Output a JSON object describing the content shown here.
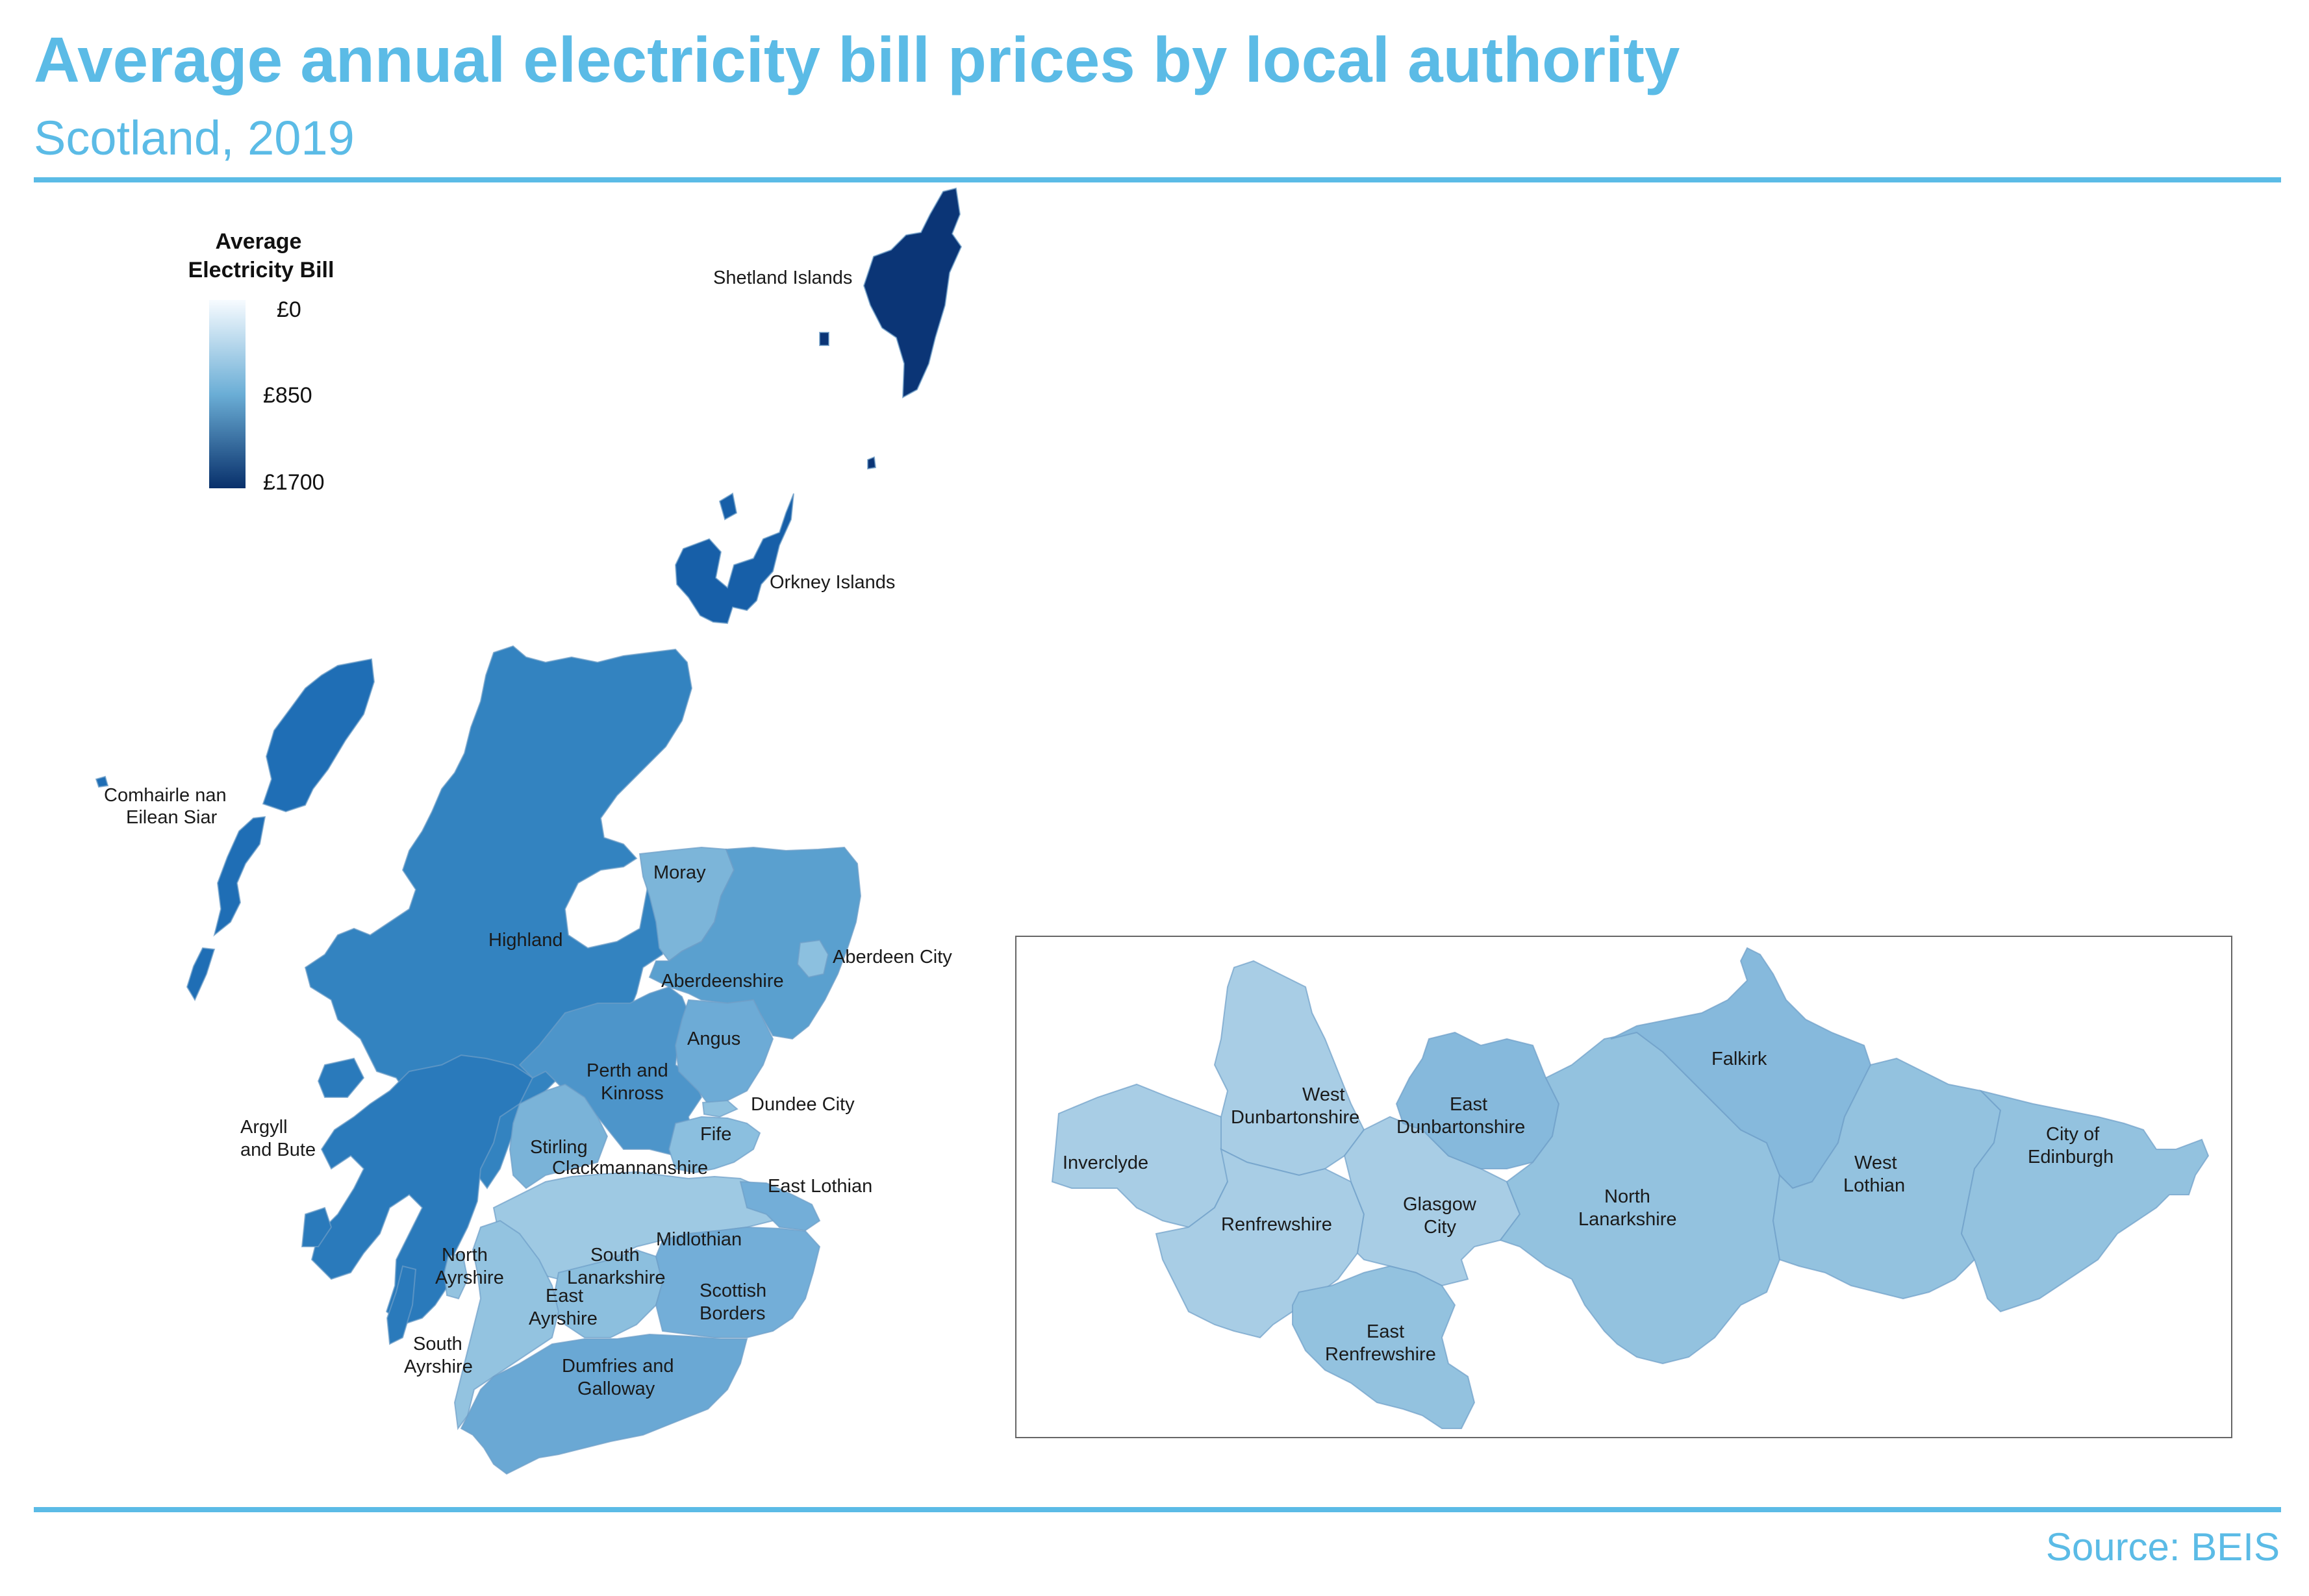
{
  "title": "Average annual electricity bill prices by local authority",
  "subtitle": "Scotland, 2019",
  "source": "Source: BEIS",
  "legend": {
    "title_line1": "Average",
    "title_line2": "Electricity Bill",
    "ticks": [
      "£0",
      "£850",
      "£1700"
    ],
    "min": 0,
    "max": 1700,
    "color_low": "#f7fbff",
    "color_mid": "#6baed6",
    "color_high": "#08306b"
  },
  "colors": {
    "shetland": "#0b3576",
    "orkney": "#175fa8",
    "eilean_siar": "#1f6eb5",
    "highland": "#3383c0",
    "argyll": "#2a7abb",
    "moray": "#7cb5d9",
    "aberdeenshire": "#5aa0cf",
    "aberdeen_city": "#8cc0df",
    "angus": "#6dabd6",
    "perth": "#4d95ca",
    "dundee": "#8fc1df",
    "fife": "#8bbfdf",
    "stirling": "#7ab3d8",
    "central_belt": "#9ec9e3",
    "south_lanarkshire": "#8cbfde",
    "borders": "#73aed8",
    "dumfries": "#6aa8d4",
    "ayrshire": "#93c3e0",
    "inset_pale": "#a8cde5",
    "inset_mid": "#93c2df",
    "inset_dark": "#86b9dc"
  },
  "labels": {
    "shetland": "Shetland Islands",
    "orkney": "Orkney Islands",
    "eilean_siar_1": "Comhairle nan",
    "eilean_siar_2": "Eilean Siar",
    "highland": "Highland",
    "moray": "Moray",
    "aberdeen_city": "Aberdeen City",
    "aberdeenshire": "Aberdeenshire",
    "angus": "Angus",
    "perth_1": "Perth and",
    "perth_2": "Kinross",
    "dundee": "Dundee City",
    "argyll_1": "Argyll",
    "argyll_2": "and Bute",
    "fife": "Fife",
    "stirling": "Stirling",
    "clackmannanshire": "Clackmannanshire",
    "east_lothian": "East Lothian",
    "midlothian": "Midlothian",
    "south_lanarkshire_1": "South",
    "south_lanarkshire_2": "Lanarkshire",
    "north_ayrshire_1": "North",
    "north_ayrshire_2": "Ayrshire",
    "east_ayrshire_1": "East",
    "east_ayrshire_2": "Ayrshire",
    "scottish_borders_1": "Scottish",
    "scottish_borders_2": "Borders",
    "south_ayrshire_1": "South",
    "south_ayrshire_2": "Ayrshire",
    "dumfries_1": "Dumfries and",
    "dumfries_2": "Galloway"
  },
  "inset_labels": {
    "west_dunbartonshire_1": "West",
    "west_dunbartonshire_2": "Dunbartonshire",
    "east_dunbartonshire_1": "East",
    "east_dunbartonshire_2": "Dunbartonshire",
    "falkirk": "Falkirk",
    "city_of_edinburgh_1": "City of",
    "city_of_edinburgh_2": "Edinburgh",
    "inverclyde": "Inverclyde",
    "renfrewshire": "Renfrewshire",
    "glasgow_1": "Glasgow",
    "glasgow_2": "City",
    "north_lanarkshire_1": "North",
    "north_lanarkshire_2": "Lanarkshire",
    "west_lothian_1": "West",
    "west_lothian_2": "Lothian",
    "east_renfrewshire_1": "East",
    "east_renfrewshire_2": "Renfrewshire"
  }
}
